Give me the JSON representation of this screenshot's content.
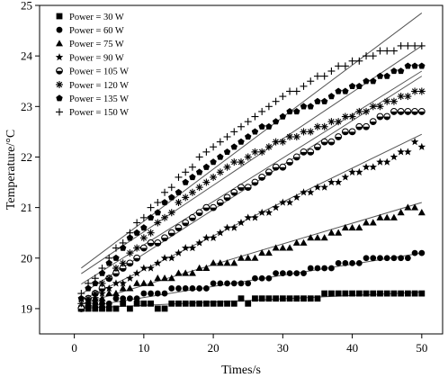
{
  "chart_data": {
    "type": "scatter",
    "xlabel": "Times/s",
    "ylabel": "Temperature/°C",
    "xlim": [
      -5,
      53
    ],
    "ylim": [
      18.5,
      25
    ],
    "x_ticks": [
      0,
      10,
      20,
      30,
      40,
      50
    ],
    "y_ticks": [
      19,
      20,
      21,
      22,
      23,
      24,
      25
    ],
    "legend_position": "top-left",
    "grid": false,
    "series": [
      {
        "name": "Power = 30 W",
        "marker": "square",
        "fit": [
          19.0,
          0.0065
        ],
        "x": [
          1,
          2,
          3,
          4,
          5,
          6,
          7,
          8,
          9,
          10,
          11,
          12,
          13,
          14,
          15,
          16,
          17,
          18,
          19,
          20,
          21,
          22,
          23,
          24,
          25,
          26,
          27,
          28,
          29,
          30,
          31,
          32,
          33,
          34,
          35,
          36,
          37,
          38,
          39,
          40,
          41,
          42,
          43,
          44,
          45,
          46,
          47,
          48,
          49,
          50
        ],
        "y": [
          19.0,
          19.0,
          19.0,
          19.0,
          19.0,
          19.0,
          19.1,
          19.0,
          19.1,
          19.1,
          19.1,
          19.0,
          19.0,
          19.1,
          19.1,
          19.1,
          19.1,
          19.1,
          19.1,
          19.1,
          19.1,
          19.1,
          19.1,
          19.2,
          19.1,
          19.2,
          19.2,
          19.2,
          19.2,
          19.2,
          19.2,
          19.2,
          19.2,
          19.2,
          19.2,
          19.3,
          19.3,
          19.3,
          19.3,
          19.3,
          19.3,
          19.3,
          19.3,
          19.3,
          19.3,
          19.3,
          19.3,
          19.3,
          19.3,
          19.3
        ]
      },
      {
        "name": "Power = 60 W",
        "marker": "circle",
        "fit": [
          19.0,
          0.022
        ],
        "x": [
          1,
          2,
          3,
          4,
          5,
          6,
          7,
          8,
          9,
          10,
          11,
          12,
          13,
          14,
          15,
          16,
          17,
          18,
          19,
          20,
          21,
          22,
          23,
          24,
          25,
          26,
          27,
          28,
          29,
          30,
          31,
          32,
          33,
          34,
          35,
          36,
          37,
          38,
          39,
          40,
          41,
          42,
          43,
          44,
          45,
          46,
          47,
          48,
          49,
          50
        ],
        "y": [
          19.0,
          19.1,
          19.1,
          19.1,
          19.1,
          19.2,
          19.2,
          19.2,
          19.2,
          19.3,
          19.3,
          19.3,
          19.3,
          19.4,
          19.4,
          19.4,
          19.4,
          19.4,
          19.4,
          19.5,
          19.5,
          19.5,
          19.5,
          19.5,
          19.5,
          19.6,
          19.6,
          19.6,
          19.7,
          19.7,
          19.7,
          19.7,
          19.7,
          19.8,
          19.8,
          19.8,
          19.8,
          19.9,
          19.9,
          19.9,
          19.9,
          20.0,
          20.0,
          20.0,
          20.0,
          20.0,
          20.0,
          20.0,
          20.1,
          20.1
        ]
      },
      {
        "name": "Power = 75 W",
        "marker": "triangle",
        "fit": [
          19.05,
          0.041
        ],
        "x": [
          1,
          2,
          3,
          4,
          5,
          6,
          7,
          8,
          9,
          10,
          11,
          12,
          13,
          14,
          15,
          16,
          17,
          18,
          19,
          20,
          21,
          22,
          23,
          24,
          25,
          26,
          27,
          28,
          29,
          30,
          31,
          32,
          33,
          34,
          35,
          36,
          37,
          38,
          39,
          40,
          41,
          42,
          43,
          44,
          45,
          46,
          47,
          48,
          49,
          50
        ],
        "y": [
          19.0,
          19.1,
          19.2,
          19.2,
          19.3,
          19.3,
          19.4,
          19.4,
          19.5,
          19.5,
          19.5,
          19.6,
          19.6,
          19.6,
          19.7,
          19.7,
          19.7,
          19.8,
          19.8,
          19.9,
          19.9,
          19.9,
          19.9,
          20.0,
          20.0,
          20.0,
          20.1,
          20.1,
          20.2,
          20.2,
          20.2,
          20.3,
          20.3,
          20.4,
          20.4,
          20.4,
          20.5,
          20.5,
          20.6,
          20.6,
          20.6,
          20.7,
          20.7,
          20.8,
          20.8,
          20.8,
          20.9,
          21.0,
          21.0,
          20.9
        ]
      },
      {
        "name": "Power = 90 W",
        "marker": "star",
        "fit": [
          19.1,
          0.067
        ],
        "x": [
          1,
          2,
          3,
          4,
          5,
          6,
          7,
          8,
          9,
          10,
          11,
          12,
          13,
          14,
          15,
          16,
          17,
          18,
          19,
          20,
          21,
          22,
          23,
          24,
          25,
          26,
          27,
          28,
          29,
          30,
          31,
          32,
          33,
          34,
          35,
          36,
          37,
          38,
          39,
          40,
          41,
          42,
          43,
          44,
          45,
          46,
          47,
          48,
          49,
          50
        ],
        "y": [
          19.0,
          19.1,
          19.2,
          19.3,
          19.4,
          19.5,
          19.5,
          19.6,
          19.7,
          19.8,
          19.8,
          19.9,
          20.0,
          20.0,
          20.1,
          20.2,
          20.2,
          20.3,
          20.4,
          20.4,
          20.5,
          20.6,
          20.6,
          20.7,
          20.8,
          20.8,
          20.9,
          20.9,
          21.0,
          21.1,
          21.1,
          21.2,
          21.3,
          21.3,
          21.4,
          21.4,
          21.5,
          21.5,
          21.6,
          21.7,
          21.7,
          21.8,
          21.8,
          21.9,
          21.9,
          22.0,
          22.1,
          22.1,
          22.3,
          22.2
        ]
      },
      {
        "name": "Power = 105 W",
        "marker": "half-circle",
        "fit": [
          19.2,
          0.088
        ],
        "x": [
          1,
          2,
          3,
          4,
          5,
          6,
          7,
          8,
          9,
          10,
          11,
          12,
          13,
          14,
          15,
          16,
          17,
          18,
          19,
          20,
          21,
          22,
          23,
          24,
          25,
          26,
          27,
          28,
          29,
          30,
          31,
          32,
          33,
          34,
          35,
          36,
          37,
          38,
          39,
          40,
          41,
          42,
          43,
          44,
          45,
          46,
          47,
          48,
          49,
          50
        ],
        "y": [
          19.0,
          19.2,
          19.3,
          19.4,
          19.6,
          19.7,
          19.8,
          19.9,
          20.0,
          20.2,
          20.3,
          20.3,
          20.4,
          20.5,
          20.6,
          20.7,
          20.8,
          20.9,
          21.0,
          21.0,
          21.1,
          21.2,
          21.3,
          21.4,
          21.4,
          21.5,
          21.6,
          21.7,
          21.8,
          21.8,
          21.9,
          22.0,
          22.1,
          22.1,
          22.2,
          22.3,
          22.3,
          22.4,
          22.5,
          22.5,
          22.6,
          22.6,
          22.7,
          22.8,
          22.8,
          22.9,
          22.9,
          22.9,
          22.9,
          22.9
        ]
      },
      {
        "name": "Power = 120 W",
        "marker": "asterisk",
        "fit": [
          19.4,
          0.086
        ],
        "x": [
          1,
          2,
          3,
          4,
          5,
          6,
          7,
          8,
          9,
          10,
          11,
          12,
          13,
          14,
          15,
          16,
          17,
          18,
          19,
          20,
          21,
          22,
          23,
          24,
          25,
          26,
          27,
          28,
          29,
          30,
          31,
          32,
          33,
          34,
          35,
          36,
          37,
          38,
          39,
          40,
          41,
          42,
          43,
          44,
          45,
          46,
          47,
          48,
          49,
          50
        ],
        "y": [
          19.1,
          19.2,
          19.3,
          19.5,
          19.6,
          19.8,
          19.9,
          20.1,
          20.2,
          20.4,
          20.5,
          20.7,
          20.8,
          20.9,
          21.1,
          21.2,
          21.3,
          21.4,
          21.5,
          21.6,
          21.7,
          21.8,
          21.9,
          21.9,
          22.0,
          22.1,
          22.1,
          22.2,
          22.3,
          22.3,
          22.4,
          22.4,
          22.5,
          22.5,
          22.6,
          22.6,
          22.7,
          22.7,
          22.8,
          22.8,
          22.9,
          22.9,
          23.0,
          23.0,
          23.1,
          23.1,
          23.2,
          23.2,
          23.3,
          23.3
        ]
      },
      {
        "name": "Power = 135 W",
        "marker": "pentagon",
        "fit": [
          19.6,
          0.092
        ],
        "x": [
          1,
          2,
          3,
          4,
          5,
          6,
          7,
          8,
          9,
          10,
          11,
          12,
          13,
          14,
          15,
          16,
          17,
          18,
          19,
          20,
          21,
          22,
          23,
          24,
          25,
          26,
          27,
          28,
          29,
          30,
          31,
          32,
          33,
          34,
          35,
          36,
          37,
          38,
          39,
          40,
          41,
          42,
          43,
          44,
          45,
          46,
          47,
          48,
          49,
          50
        ],
        "y": [
          19.2,
          19.4,
          19.5,
          19.7,
          19.9,
          20.0,
          20.2,
          20.4,
          20.5,
          20.6,
          20.8,
          20.9,
          21.1,
          21.2,
          21.3,
          21.5,
          21.6,
          21.7,
          21.8,
          21.9,
          22.0,
          22.1,
          22.2,
          22.3,
          22.4,
          22.5,
          22.6,
          22.6,
          22.7,
          22.8,
          22.9,
          22.9,
          23.0,
          23.0,
          23.1,
          23.1,
          23.2,
          23.3,
          23.3,
          23.4,
          23.4,
          23.5,
          23.5,
          23.6,
          23.6,
          23.7,
          23.7,
          23.8,
          23.8,
          23.8
        ]
      },
      {
        "name": "Power = 150 W",
        "marker": "plus",
        "fit": [
          19.7,
          0.103
        ],
        "x": [
          1,
          2,
          3,
          4,
          5,
          6,
          7,
          8,
          9,
          10,
          11,
          12,
          13,
          14,
          15,
          16,
          17,
          18,
          19,
          20,
          21,
          22,
          23,
          24,
          25,
          26,
          27,
          28,
          29,
          30,
          31,
          32,
          33,
          34,
          35,
          36,
          37,
          38,
          39,
          40,
          41,
          42,
          43,
          44,
          45,
          46,
          47,
          48,
          49,
          50
        ],
        "y": [
          19.3,
          19.5,
          19.6,
          19.8,
          20.0,
          20.2,
          20.3,
          20.5,
          20.7,
          20.8,
          21.0,
          21.1,
          21.3,
          21.4,
          21.6,
          21.7,
          21.8,
          22.0,
          22.1,
          22.2,
          22.3,
          22.4,
          22.5,
          22.6,
          22.7,
          22.8,
          22.9,
          23.0,
          23.1,
          23.2,
          23.3,
          23.3,
          23.4,
          23.5,
          23.6,
          23.6,
          23.7,
          23.8,
          23.8,
          23.9,
          23.9,
          24.0,
          24.0,
          24.1,
          24.1,
          24.1,
          24.2,
          24.2,
          24.2,
          24.2
        ]
      }
    ]
  }
}
